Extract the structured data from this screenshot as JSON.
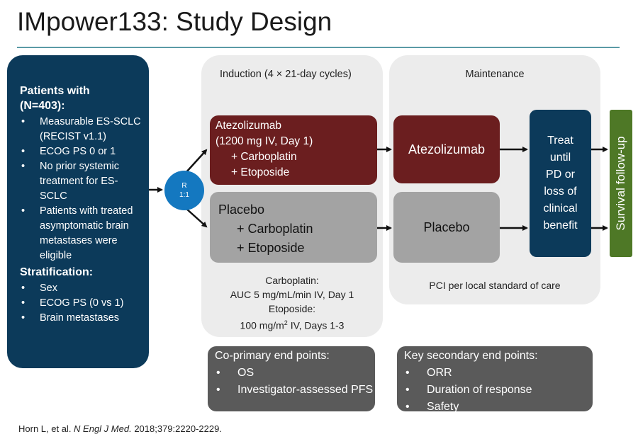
{
  "title": "IMpower133: Study Design",
  "patients": {
    "heading_line1": "Patients with",
    "heading_line2": "(N=403):",
    "criteria": [
      "Measurable ES-SCLC (RECIST v1.1)",
      "ECOG PS 0 or 1",
      "No prior systemic treatment for ES-SCLC",
      "Patients with treated asymptomatic brain metastases were eligible"
    ],
    "stratification_heading": "Stratification:",
    "stratification": [
      "Sex",
      "ECOG PS (0 vs 1)",
      "Brain metastases"
    ]
  },
  "randomization": {
    "line1": "R",
    "line2": "1:1"
  },
  "induction": {
    "label": "Induction (4 × 21-day cycles)",
    "atezo_arm": [
      "Atezolizumab",
      "(1200 mg IV, Day 1)",
      "+ Carboplatin",
      "+ Etoposide"
    ],
    "placebo_arm": [
      "Placebo",
      "+ Carboplatin",
      "+ Etoposide"
    ],
    "note": {
      "line1": "Carboplatin:",
      "line2": "AUC 5 mg/mL/min IV, Day 1",
      "line3": "Etoposide:",
      "line4_pre": "100 mg/m",
      "line4_sup": "2",
      "line4_post": " IV, Days 1-3"
    }
  },
  "maintenance": {
    "label": "Maintenance",
    "atezo": "Atezolizumab",
    "placebo": "Placebo",
    "note": "PCI per local standard of care"
  },
  "treat_until": [
    "Treat",
    "until",
    "PD or",
    "loss of",
    "clinical",
    "benefit"
  ],
  "survival": "Survival follow-up",
  "co_primary": {
    "heading": "Co-primary end points:",
    "items": [
      "OS",
      "Investigator-assessed PFS"
    ]
  },
  "secondary": {
    "heading": "Key secondary end points:",
    "items": [
      "ORR",
      "Duration of response",
      "Safety"
    ]
  },
  "citation": {
    "authors": "Horn L, et al. ",
    "journal": "N Engl J Med.",
    "details": " 2018;379:2220-2229."
  },
  "colors": {
    "navy": "#0c3a5a",
    "maroon": "#6b1e1f",
    "gray_arm": "#a3a3a3",
    "panel": "#ececec",
    "green": "#4e7826",
    "blue_circle": "#1478c0",
    "endpoint_box": "#5a5a5a",
    "rule": "#5a9aa6"
  }
}
